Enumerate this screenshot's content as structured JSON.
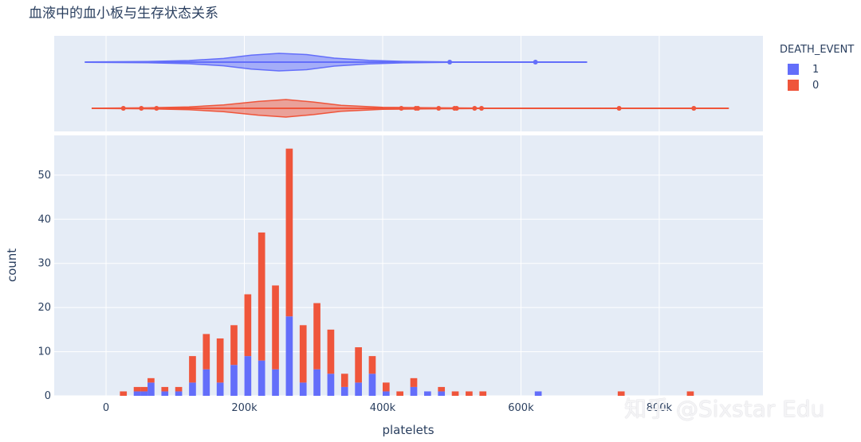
{
  "title": "血液中的血小板与生存状态关系",
  "watermark": "知乎 @Sixstar Edu",
  "legend": {
    "title": "DEATH_EVENT",
    "items": [
      {
        "label": "1",
        "color": "#636efa"
      },
      {
        "label": "0",
        "color": "#ef553b"
      }
    ]
  },
  "chart_data": {
    "type": "bar",
    "subtype": "stacked-histogram-with-violin-marginal",
    "xlabel": "platelets",
    "ylabel": "count",
    "xlim": [
      -75000,
      950000
    ],
    "ylim": [
      0,
      59
    ],
    "bin_width": 10000,
    "x_ticks": [
      {
        "value": 0,
        "label": "0"
      },
      {
        "value": 200000,
        "label": "200k"
      },
      {
        "value": 400000,
        "label": "400k"
      },
      {
        "value": 600000,
        "label": "600k"
      },
      {
        "value": 800000,
        "label": "800k"
      }
    ],
    "y_ticks": [
      0,
      10,
      20,
      30,
      40,
      50
    ],
    "grid": true,
    "legend_position": "top-right",
    "series": [
      {
        "name": "1",
        "color": "#636efa",
        "bins": [
          {
            "x0": 40000,
            "count": 1
          },
          {
            "x0": 50000,
            "count": 1
          },
          {
            "x0": 60000,
            "count": 3
          },
          {
            "x0": 80000,
            "count": 1
          },
          {
            "x0": 100000,
            "count": 1
          },
          {
            "x0": 120000,
            "count": 3
          },
          {
            "x0": 140000,
            "count": 6
          },
          {
            "x0": 160000,
            "count": 3
          },
          {
            "x0": 180000,
            "count": 7
          },
          {
            "x0": 200000,
            "count": 9
          },
          {
            "x0": 220000,
            "count": 8
          },
          {
            "x0": 240000,
            "count": 6
          },
          {
            "x0": 260000,
            "count": 18
          },
          {
            "x0": 280000,
            "count": 3
          },
          {
            "x0": 300000,
            "count": 6
          },
          {
            "x0": 320000,
            "count": 5
          },
          {
            "x0": 340000,
            "count": 2
          },
          {
            "x0": 360000,
            "count": 3
          },
          {
            "x0": 380000,
            "count": 5
          },
          {
            "x0": 400000,
            "count": 1
          },
          {
            "x0": 440000,
            "count": 2
          },
          {
            "x0": 460000,
            "count": 1
          },
          {
            "x0": 480000,
            "count": 1
          },
          {
            "x0": 620000,
            "count": 1
          }
        ]
      },
      {
        "name": "0",
        "color": "#ef553b",
        "bins": [
          {
            "x0": 20000,
            "count": 1
          },
          {
            "x0": 40000,
            "count": 1
          },
          {
            "x0": 50000,
            "count": 1
          },
          {
            "x0": 60000,
            "count": 1
          },
          {
            "x0": 80000,
            "count": 1
          },
          {
            "x0": 100000,
            "count": 1
          },
          {
            "x0": 120000,
            "count": 6
          },
          {
            "x0": 140000,
            "count": 8
          },
          {
            "x0": 160000,
            "count": 10
          },
          {
            "x0": 180000,
            "count": 9
          },
          {
            "x0": 200000,
            "count": 14
          },
          {
            "x0": 220000,
            "count": 29
          },
          {
            "x0": 240000,
            "count": 19
          },
          {
            "x0": 260000,
            "count": 38
          },
          {
            "x0": 280000,
            "count": 13
          },
          {
            "x0": 300000,
            "count": 15
          },
          {
            "x0": 320000,
            "count": 10
          },
          {
            "x0": 340000,
            "count": 3
          },
          {
            "x0": 360000,
            "count": 8
          },
          {
            "x0": 380000,
            "count": 4
          },
          {
            "x0": 400000,
            "count": 2
          },
          {
            "x0": 420000,
            "count": 1
          },
          {
            "x0": 440000,
            "count": 2
          },
          {
            "x0": 480000,
            "count": 1
          },
          {
            "x0": 500000,
            "count": 1
          },
          {
            "x0": 520000,
            "count": 1
          },
          {
            "x0": 540000,
            "count": 1
          },
          {
            "x0": 740000,
            "count": 1
          },
          {
            "x0": 840000,
            "count": 1
          }
        ]
      }
    ],
    "violin": [
      {
        "name": "1",
        "color": "#636efa",
        "range": [
          -30000,
          695000
        ],
        "profile": [
          {
            "x": -30000,
            "d": 0.02
          },
          {
            "x": 60000,
            "d": 0.06
          },
          {
            "x": 120000,
            "d": 0.18
          },
          {
            "x": 170000,
            "d": 0.42
          },
          {
            "x": 210000,
            "d": 0.8
          },
          {
            "x": 250000,
            "d": 1.0
          },
          {
            "x": 290000,
            "d": 0.86
          },
          {
            "x": 330000,
            "d": 0.45
          },
          {
            "x": 380000,
            "d": 0.2
          },
          {
            "x": 430000,
            "d": 0.08
          },
          {
            "x": 500000,
            "d": 0.03
          },
          {
            "x": 600000,
            "d": 0.015
          },
          {
            "x": 695000,
            "d": 0.01
          }
        ],
        "outliers": [
          497000,
          621000
        ]
      },
      {
        "name": "0",
        "color": "#ef553b",
        "range": [
          -20000,
          900000
        ],
        "profile": [
          {
            "x": -20000,
            "d": 0.02
          },
          {
            "x": 60000,
            "d": 0.05
          },
          {
            "x": 120000,
            "d": 0.16
          },
          {
            "x": 170000,
            "d": 0.38
          },
          {
            "x": 220000,
            "d": 0.78
          },
          {
            "x": 260000,
            "d": 1.0
          },
          {
            "x": 300000,
            "d": 0.72
          },
          {
            "x": 340000,
            "d": 0.34
          },
          {
            "x": 400000,
            "d": 0.12
          },
          {
            "x": 460000,
            "d": 0.06
          },
          {
            "x": 550000,
            "d": 0.03
          },
          {
            "x": 700000,
            "d": 0.015
          },
          {
            "x": 900000,
            "d": 0.01
          }
        ],
        "outliers": [
          25000,
          51000,
          73000,
          427000,
          448000,
          451000,
          481000,
          504000,
          507000,
          533000,
          543000,
          742000,
          850000
        ]
      }
    ]
  }
}
